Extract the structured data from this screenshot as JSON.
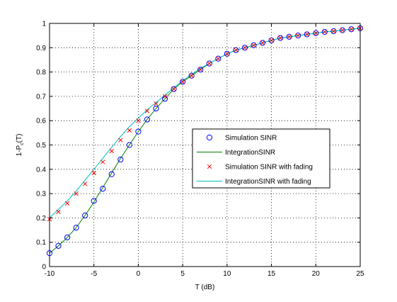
{
  "chart_data": {
    "type": "line",
    "title": "",
    "xlabel": "T (dB)",
    "ylabel": {
      "base": "1-P",
      "sub": "c",
      "tail": "(T)"
    },
    "xlim": [
      -10,
      25
    ],
    "ylim": [
      0,
      1
    ],
    "xticks": [
      "-10",
      "-5",
      "0",
      "5",
      "10",
      "15",
      "20",
      "25"
    ],
    "yticks": [
      "0",
      "0.1",
      "0.2",
      "0.3",
      "0.4",
      "0.5",
      "0.6",
      "0.7",
      "0.8",
      "0.9",
      "1"
    ],
    "grid": true,
    "legend_position": "center-right",
    "x": [
      -10,
      -9,
      -8,
      -7,
      -6,
      -5,
      -4,
      -3,
      -2,
      -1,
      0,
      1,
      2,
      3,
      4,
      5,
      6,
      7,
      8,
      9,
      10,
      11,
      12,
      13,
      14,
      15,
      16,
      17,
      18,
      19,
      20,
      21,
      22,
      23,
      24,
      25
    ],
    "series": [
      {
        "name": "Simulation SINR",
        "style": "circle",
        "color": "#0000ff",
        "values": [
          0.055,
          0.085,
          0.12,
          0.16,
          0.21,
          0.27,
          0.32,
          0.38,
          0.44,
          0.5,
          0.555,
          0.605,
          0.65,
          0.69,
          0.73,
          0.76,
          0.785,
          0.81,
          0.835,
          0.855,
          0.875,
          0.89,
          0.9,
          0.91,
          0.92,
          0.93,
          0.94,
          0.945,
          0.95,
          0.955,
          0.96,
          0.965,
          0.968,
          0.972,
          0.976,
          0.98
        ]
      },
      {
        "name": "IntegrationSINR",
        "style": "line",
        "color": "#008000",
        "values": [
          0.055,
          0.085,
          0.12,
          0.16,
          0.21,
          0.265,
          0.325,
          0.385,
          0.445,
          0.5,
          0.555,
          0.605,
          0.65,
          0.69,
          0.73,
          0.76,
          0.785,
          0.81,
          0.835,
          0.855,
          0.875,
          0.89,
          0.9,
          0.91,
          0.92,
          0.93,
          0.94,
          0.945,
          0.95,
          0.955,
          0.96,
          0.965,
          0.968,
          0.972,
          0.976,
          0.98
        ]
      },
      {
        "name": "Simulation SINR with fading",
        "style": "x",
        "color": "#ff0000",
        "values": [
          0.195,
          0.225,
          0.26,
          0.3,
          0.34,
          0.385,
          0.43,
          0.475,
          0.52,
          0.56,
          0.6,
          0.64,
          0.67,
          0.7,
          0.73,
          0.76,
          0.785,
          0.81,
          0.835,
          0.855,
          0.875,
          0.89,
          0.9,
          0.91,
          0.92,
          0.93,
          0.94,
          0.945,
          0.95,
          0.955,
          0.96,
          0.965,
          0.968,
          0.972,
          0.976,
          0.98
        ]
      },
      {
        "name": "IntegrationSINR with fading",
        "style": "line",
        "color": "#00bfbf",
        "values": [
          0.2,
          0.235,
          0.27,
          0.31,
          0.355,
          0.4,
          0.445,
          0.49,
          0.535,
          0.575,
          0.61,
          0.645,
          0.675,
          0.705,
          0.735,
          0.765,
          0.79,
          0.815,
          0.835,
          0.855,
          0.875,
          0.89,
          0.9,
          0.91,
          0.92,
          0.93,
          0.94,
          0.945,
          0.95,
          0.955,
          0.96,
          0.965,
          0.968,
          0.972,
          0.976,
          0.98
        ]
      }
    ]
  }
}
